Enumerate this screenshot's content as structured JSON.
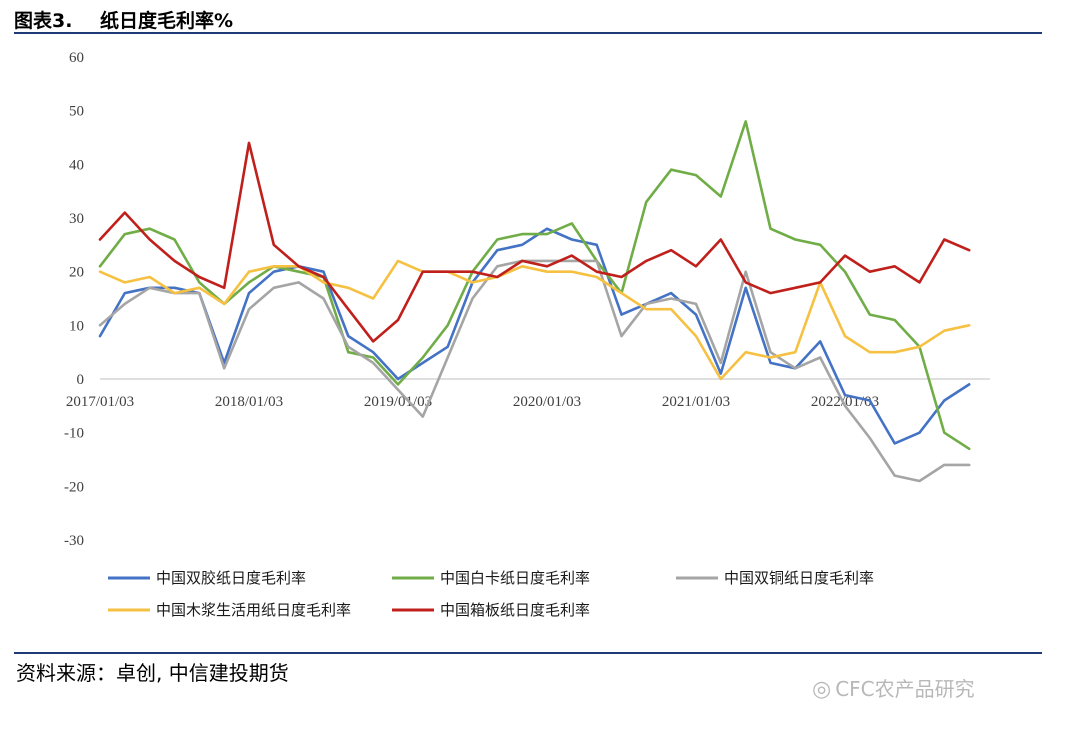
{
  "header": {
    "figure_label": "图表3.",
    "title": "纸日度毛利率%"
  },
  "footer": {
    "source": "资料来源：卓创, 中信建投期货",
    "watermark": "CFC农产品研究"
  },
  "chart_data": {
    "type": "line",
    "title": "纸日度毛利率%",
    "xlabel": "",
    "ylabel": "",
    "ylim": [
      -30,
      60
    ],
    "yticks": [
      60,
      50,
      40,
      30,
      20,
      10,
      0,
      -10,
      -20,
      -30
    ],
    "xticks": [
      "2017/01/03",
      "2018/01/03",
      "2019/01/03",
      "2020/01/03",
      "2021/01/03",
      "2022/01/03"
    ],
    "legend": "bottom",
    "grid": false,
    "x": [
      "2017-01",
      "2017-03",
      "2017-05",
      "2017-07",
      "2017-09",
      "2017-11",
      "2018-01",
      "2018-03",
      "2018-05",
      "2018-07",
      "2018-09",
      "2018-11",
      "2019-01",
      "2019-03",
      "2019-05",
      "2019-07",
      "2019-09",
      "2019-11",
      "2020-01",
      "2020-03",
      "2020-05",
      "2020-07",
      "2020-09",
      "2020-11",
      "2021-01",
      "2021-03",
      "2021-05",
      "2021-07",
      "2021-09",
      "2021-11",
      "2022-01",
      "2022-03",
      "2022-05",
      "2022-07",
      "2022-09",
      "2022-11"
    ],
    "series": [
      {
        "name": "中国双胶纸日度毛利率",
        "color": "#4472c4",
        "values": [
          8,
          16,
          17,
          17,
          16,
          3,
          16,
          20,
          21,
          20,
          8,
          5,
          0,
          3,
          6,
          18,
          24,
          25,
          28,
          26,
          25,
          12,
          14,
          16,
          12,
          1,
          17,
          3,
          2,
          7,
          -3,
          -4,
          -12,
          -10,
          -4,
          -1
        ]
      },
      {
        "name": "中国白卡纸日度毛利率",
        "color": "#70ad47",
        "values": [
          21,
          27,
          28,
          26,
          18,
          14,
          18,
          21,
          20,
          19,
          5,
          4,
          -1,
          4,
          10,
          20,
          26,
          27,
          27,
          29,
          22,
          16,
          33,
          39,
          38,
          34,
          48,
          28,
          26,
          25,
          20,
          12,
          11,
          6,
          -10,
          -13
        ]
      },
      {
        "name": "中国双铜纸日度毛利率",
        "color": "#a5a5a5",
        "values": [
          10,
          14,
          17,
          16,
          16,
          2,
          13,
          17,
          18,
          15,
          6,
          3,
          -2,
          -7,
          4,
          15,
          21,
          22,
          22,
          22,
          22,
          8,
          14,
          15,
          14,
          3,
          20,
          5,
          2,
          4,
          -5,
          -11,
          -18,
          -19,
          -16,
          -16
        ]
      },
      {
        "name": "中国木浆生活用纸日度毛利率",
        "color": "#f6c142",
        "values": [
          20,
          18,
          19,
          16,
          17,
          14,
          20,
          21,
          21,
          18,
          17,
          15,
          22,
          20,
          20,
          18,
          19,
          21,
          20,
          20,
          19,
          16,
          13,
          13,
          8,
          0,
          5,
          4,
          5,
          18,
          8,
          5,
          5,
          6,
          9,
          10
        ]
      },
      {
        "name": "中国箱板纸日度毛利率",
        "color": "#c0201c",
        "values": [
          26,
          31,
          26,
          22,
          19,
          17,
          44,
          25,
          21,
          19,
          13,
          7,
          11,
          20,
          20,
          20,
          19,
          22,
          21,
          23,
          20,
          19,
          22,
          24,
          21,
          26,
          18,
          16,
          17,
          18,
          23,
          20,
          21,
          18,
          26,
          24
        ]
      }
    ]
  }
}
